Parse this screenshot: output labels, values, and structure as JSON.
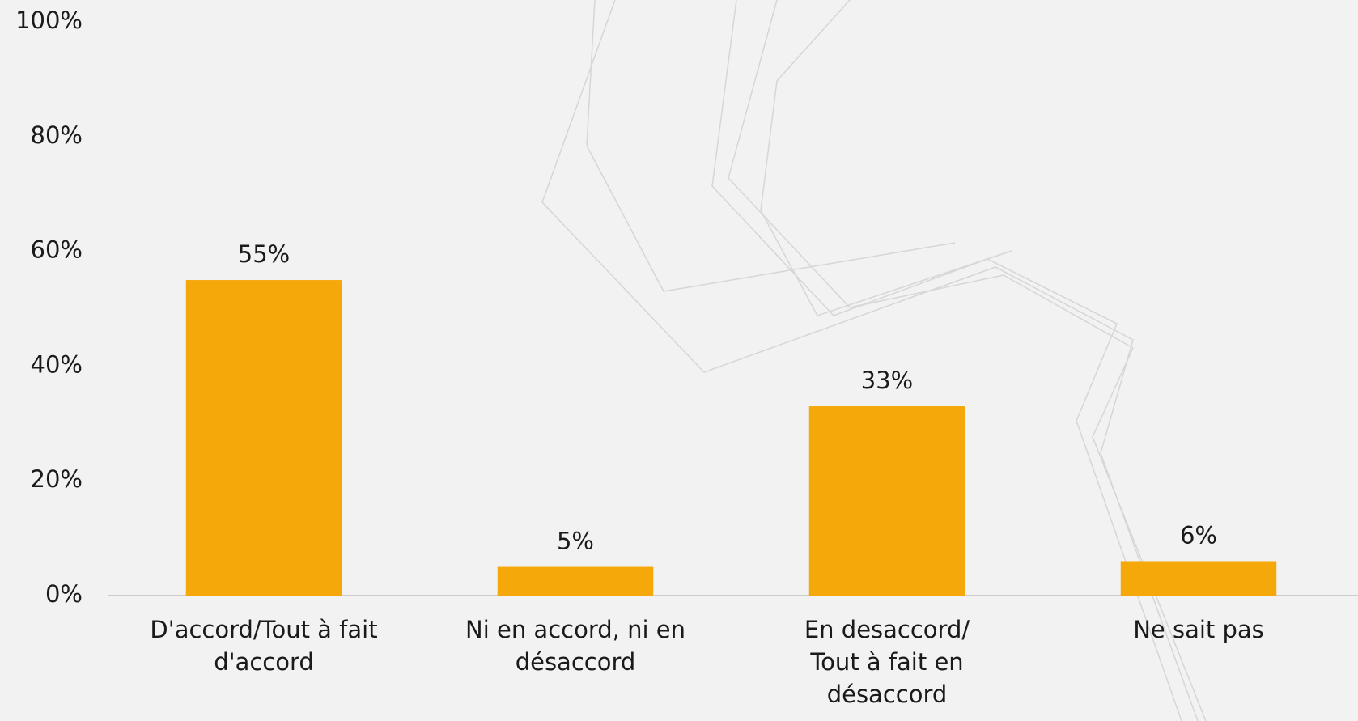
{
  "chart_data": {
    "type": "bar",
    "categories": [
      "D'accord/Tout à fait d'accord",
      "Ni en accord, ni en désaccord",
      "En desaccord/ Tout à fait en désaccord",
      "Ne sait pas"
    ],
    "values": [
      55,
      5,
      33,
      6
    ],
    "value_labels": [
      "55%",
      "5%",
      "33%",
      "6%"
    ],
    "color": "#f4a80a",
    "ylim": [
      0,
      100
    ],
    "yticks": [
      {
        "value": 0,
        "label": "0%"
      },
      {
        "value": 20,
        "label": "20%"
      },
      {
        "value": 40,
        "label": "40%"
      },
      {
        "value": 60,
        "label": "60%"
      },
      {
        "value": 80,
        "label": "80%"
      },
      {
        "value": 100,
        "label": "100%"
      }
    ],
    "grid": false
  }
}
